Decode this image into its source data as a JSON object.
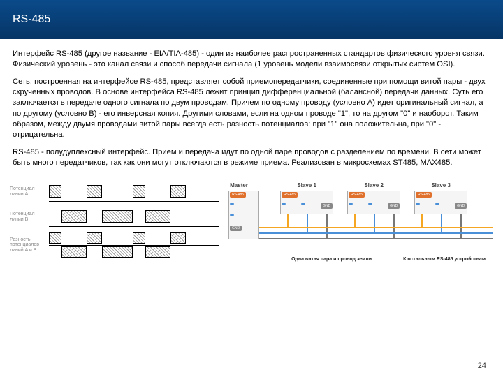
{
  "header": {
    "title": "RS-485"
  },
  "paragraphs": {
    "p1": "Интерфейс RS-485 (другое название - EIA/TIA-485) - один из наиболее распространенных стандартов физического уровня связи. Физический уровень - это канал связи и способ передачи сигнала (1 уровень модели взаимосвязи открытых систем OSI).",
    "p2": "Сеть, построенная на интерфейсе RS-485, представляет собой приемопередатчики, соединенные при помощи витой пары - двух скрученных проводов. В основе интерфейса RS-485 лежит принцип дифференциальной (балансной) передачи данных. Суть его заключается в передаче одного сигнала по двум проводам. Причем по одному проводу (условно A) идет оригинальный сигнал, а по другому (условно B) - его инверсная копия. Другими словами, если на одном проводе \"1\", то на другом \"0\" и наоборот. Таким образом, между двумя проводами витой пары всегда есть разность потенциалов: при \"1\" она положительна, при \"0\" - отрицательна.",
    "p3": "RS-485 - полудуплексный интерфейс. Прием и передача идут по одной паре проводов с разделением по времени. В сети может быть много передатчиков, так как они могут отключаются в режиме приема. Реализован в микросхемах ST485, MAX485."
  },
  "signals": {
    "rowA": "Потенциал линии A",
    "rowB": "Потенциал линии B",
    "rowDiff": "Разность потенциалов линий A и B",
    "segments": [
      18,
      36,
      22,
      44,
      18,
      36,
      22
    ]
  },
  "topology": {
    "master": "Master",
    "slaves": [
      "Slave 1",
      "Slave 2",
      "Slave 3"
    ],
    "ports": {
      "rs485": "RS-485",
      "dataBp": "DATA (B)+",
      "dataAm": "DATA (A)-",
      "gnd": "GND"
    },
    "bus_colors": {
      "bp": "#f5a623",
      "am": "#4a90d9",
      "gnd": "#777777"
    },
    "tag_colors": {
      "rs485": "#e0712c",
      "bp": "#4a90d9",
      "am": "#4a90d9",
      "gnd": "#888888"
    },
    "caption1": "Одна витая пара и провод земли",
    "caption2": "К остальным RS-485 устройствам"
  },
  "page": "24",
  "colors": {
    "header_bg_top": "#0a4a8a",
    "header_bg_bottom": "#063566",
    "text": "#000000"
  }
}
